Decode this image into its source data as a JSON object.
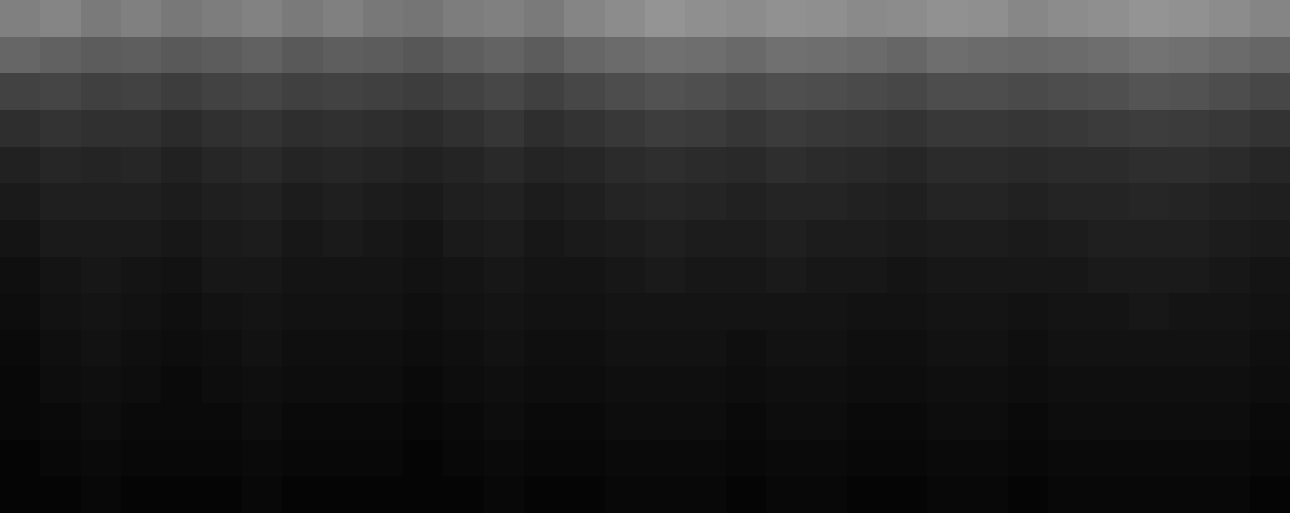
{
  "chart_data": {
    "type": "heatmap",
    "tick_labels": false,
    "zlim": [
      0,
      1
    ],
    "cells": [
      [
        0.5,
        0.52,
        0.48,
        0.5,
        0.47,
        0.49,
        0.51,
        0.48,
        0.5,
        0.47,
        0.46,
        0.49,
        0.5,
        0.48,
        0.52,
        0.55,
        0.58,
        0.56,
        0.55,
        0.57,
        0.56,
        0.54,
        0.55,
        0.57,
        0.56,
        0.53,
        0.55,
        0.56,
        0.58,
        0.57,
        0.55,
        0.52
      ],
      [
        0.4,
        0.38,
        0.36,
        0.37,
        0.35,
        0.36,
        0.38,
        0.35,
        0.37,
        0.36,
        0.34,
        0.37,
        0.39,
        0.36,
        0.4,
        0.42,
        0.44,
        0.43,
        0.41,
        0.44,
        0.43,
        0.42,
        0.4,
        0.43,
        0.42,
        0.41,
        0.42,
        0.43,
        0.45,
        0.44,
        0.42,
        0.4
      ],
      [
        0.26,
        0.27,
        0.25,
        0.26,
        0.24,
        0.26,
        0.27,
        0.25,
        0.26,
        0.25,
        0.24,
        0.26,
        0.28,
        0.25,
        0.28,
        0.3,
        0.32,
        0.31,
        0.29,
        0.31,
        0.3,
        0.29,
        0.28,
        0.3,
        0.3,
        0.29,
        0.3,
        0.31,
        0.33,
        0.32,
        0.3,
        0.28
      ],
      [
        0.18,
        0.2,
        0.19,
        0.19,
        0.17,
        0.19,
        0.2,
        0.18,
        0.19,
        0.18,
        0.17,
        0.19,
        0.21,
        0.18,
        0.2,
        0.22,
        0.24,
        0.23,
        0.21,
        0.23,
        0.22,
        0.21,
        0.2,
        0.22,
        0.22,
        0.21,
        0.22,
        0.23,
        0.24,
        0.23,
        0.22,
        0.2
      ],
      [
        0.13,
        0.15,
        0.14,
        0.15,
        0.13,
        0.15,
        0.16,
        0.14,
        0.15,
        0.14,
        0.13,
        0.14,
        0.16,
        0.14,
        0.15,
        0.17,
        0.18,
        0.17,
        0.16,
        0.18,
        0.17,
        0.16,
        0.15,
        0.17,
        0.17,
        0.16,
        0.17,
        0.17,
        0.18,
        0.18,
        0.17,
        0.15
      ],
      [
        0.1,
        0.12,
        0.12,
        0.12,
        0.11,
        0.12,
        0.13,
        0.11,
        0.12,
        0.11,
        0.1,
        0.12,
        0.13,
        0.11,
        0.12,
        0.14,
        0.15,
        0.14,
        0.13,
        0.14,
        0.14,
        0.13,
        0.12,
        0.14,
        0.14,
        0.13,
        0.14,
        0.14,
        0.15,
        0.14,
        0.13,
        0.12
      ],
      [
        0.08,
        0.1,
        0.1,
        0.1,
        0.09,
        0.1,
        0.11,
        0.09,
        0.1,
        0.09,
        0.08,
        0.1,
        0.11,
        0.09,
        0.1,
        0.11,
        0.12,
        0.11,
        0.11,
        0.12,
        0.11,
        0.11,
        0.1,
        0.11,
        0.11,
        0.1,
        0.11,
        0.12,
        0.12,
        0.12,
        0.11,
        0.1
      ],
      [
        0.06,
        0.08,
        0.09,
        0.08,
        0.07,
        0.09,
        0.09,
        0.08,
        0.08,
        0.08,
        0.07,
        0.08,
        0.09,
        0.08,
        0.08,
        0.09,
        0.1,
        0.09,
        0.09,
        0.1,
        0.09,
        0.09,
        0.08,
        0.09,
        0.09,
        0.09,
        0.09,
        0.1,
        0.1,
        0.1,
        0.09,
        0.08
      ],
      [
        0.05,
        0.07,
        0.08,
        0.07,
        0.06,
        0.07,
        0.08,
        0.07,
        0.07,
        0.07,
        0.06,
        0.07,
        0.08,
        0.07,
        0.07,
        0.08,
        0.08,
        0.08,
        0.08,
        0.08,
        0.08,
        0.07,
        0.07,
        0.08,
        0.08,
        0.07,
        0.08,
        0.08,
        0.09,
        0.08,
        0.08,
        0.07
      ],
      [
        0.04,
        0.06,
        0.07,
        0.06,
        0.05,
        0.06,
        0.07,
        0.06,
        0.06,
        0.06,
        0.05,
        0.06,
        0.07,
        0.06,
        0.06,
        0.07,
        0.07,
        0.07,
        0.06,
        0.07,
        0.07,
        0.06,
        0.06,
        0.07,
        0.07,
        0.06,
        0.07,
        0.07,
        0.07,
        0.07,
        0.07,
        0.06
      ],
      [
        0.03,
        0.05,
        0.06,
        0.05,
        0.04,
        0.05,
        0.06,
        0.05,
        0.05,
        0.05,
        0.04,
        0.05,
        0.06,
        0.05,
        0.05,
        0.06,
        0.06,
        0.06,
        0.05,
        0.06,
        0.06,
        0.05,
        0.05,
        0.06,
        0.06,
        0.05,
        0.06,
        0.06,
        0.06,
        0.06,
        0.06,
        0.05
      ],
      [
        0.03,
        0.04,
        0.05,
        0.04,
        0.04,
        0.04,
        0.05,
        0.04,
        0.04,
        0.04,
        0.03,
        0.04,
        0.05,
        0.04,
        0.04,
        0.05,
        0.05,
        0.05,
        0.04,
        0.05,
        0.05,
        0.04,
        0.04,
        0.05,
        0.05,
        0.04,
        0.05,
        0.05,
        0.05,
        0.05,
        0.05,
        0.04
      ],
      [
        0.02,
        0.03,
        0.04,
        0.03,
        0.03,
        0.03,
        0.04,
        0.03,
        0.03,
        0.03,
        0.02,
        0.03,
        0.04,
        0.03,
        0.03,
        0.04,
        0.04,
        0.04,
        0.03,
        0.04,
        0.04,
        0.03,
        0.03,
        0.04,
        0.04,
        0.03,
        0.04,
        0.04,
        0.04,
        0.04,
        0.04,
        0.03
      ],
      [
        0.02,
        0.02,
        0.03,
        0.02,
        0.02,
        0.02,
        0.03,
        0.02,
        0.02,
        0.02,
        0.02,
        0.02,
        0.03,
        0.02,
        0.02,
        0.03,
        0.03,
        0.03,
        0.02,
        0.03,
        0.03,
        0.02,
        0.02,
        0.03,
        0.03,
        0.02,
        0.03,
        0.03,
        0.03,
        0.03,
        0.03,
        0.02
      ]
    ]
  }
}
